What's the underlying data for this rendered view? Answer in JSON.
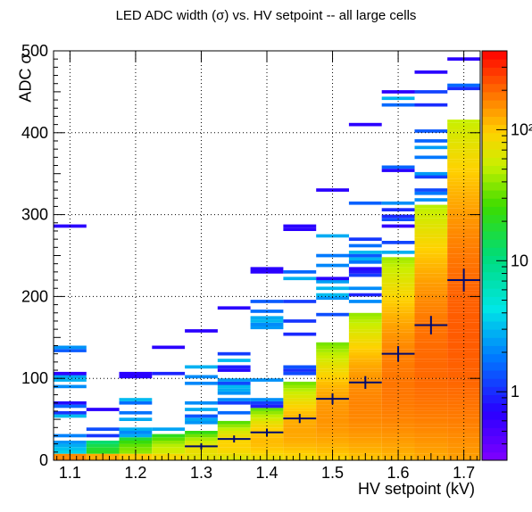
{
  "chart_data": {
    "type": "heatmap",
    "title": "LED ADC width (σ) vs. HV setpoint -- all large cells",
    "xlabel": "HV setpoint (kV)",
    "ylabel": "ADC σ",
    "xlim": [
      1.075,
      1.725
    ],
    "ylim": [
      0,
      500
    ],
    "x_ticks": [
      "1.1",
      "1.2",
      "1.3",
      "1.4",
      "1.5",
      "1.6",
      "1.7"
    ],
    "y_ticks": [
      "0",
      "100",
      "200",
      "300",
      "400",
      "500"
    ],
    "z_scale": "log",
    "z_range": [
      0.3,
      400
    ],
    "z_ticks": [
      "1",
      "10",
      "10²"
    ],
    "grid": true,
    "colorbar": "right",
    "x_bin_centers": [
      1.1,
      1.15,
      1.2,
      1.25,
      1.3,
      1.35,
      1.4,
      1.45,
      1.5,
      1.55,
      1.6,
      1.65,
      1.7
    ],
    "max_occupied_adc": [
      288,
      62,
      105,
      140,
      160,
      188,
      233,
      285,
      330,
      410,
      450,
      475,
      490
    ],
    "profile_means": [
      {
        "x": 1.3,
        "y": 17
      },
      {
        "x": 1.35,
        "y": 26
      },
      {
        "x": 1.4,
        "y": 34
      },
      {
        "x": 1.45,
        "y": 51
      },
      {
        "x": 1.5,
        "y": 75
      },
      {
        "x": 1.55,
        "y": 95
      },
      {
        "x": 1.6,
        "y": 130
      },
      {
        "x": 1.65,
        "y": 165
      },
      {
        "x": 1.7,
        "y": 220
      }
    ]
  }
}
